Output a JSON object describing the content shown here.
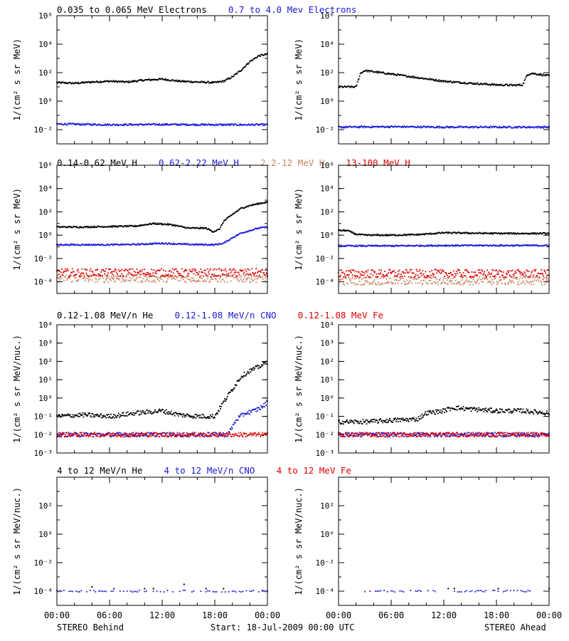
{
  "colors": {
    "black": "#000000",
    "blue": "#1a1ad8",
    "tan": "#c88864",
    "red": "#e00000"
  },
  "footer": {
    "left_label": "STEREO Behind",
    "center_label": "Start: 18-Jul-2009 00:00 UTC",
    "right_label": "STEREO Ahead"
  },
  "chart_data": [
    {
      "type": "scatter",
      "row_title": [
        {
          "text": "0.035 to 0.065 MeV Electrons",
          "color": "black"
        },
        {
          "text": "0.7 to 4.0 Mev Electrons",
          "color": "blue"
        }
      ],
      "ylabel": "1/(cm² s sr MeV)",
      "y_scale": "log",
      "ylim": [
        0.001,
        1000000
      ],
      "yticks": [
        {
          "v": 0.01,
          "label": "10⁻²"
        },
        {
          "v": 1,
          "label": "10⁰"
        },
        {
          "v": 100,
          "label": "10²"
        },
        {
          "v": 10000,
          "label": "10⁴"
        },
        {
          "v": 1000000,
          "label": "10⁶"
        }
      ],
      "xlim": [
        0,
        24
      ],
      "x_ticks_hours": [
        0,
        6,
        12,
        18,
        24
      ],
      "x_tick_labels": [],
      "panels": [
        {
          "name": "STEREO Behind",
          "series": [
            {
              "name": "0.035 to 0.065 MeV Electrons",
              "color": "black",
              "x": [
                0,
                2,
                4,
                6,
                8,
                10,
                12,
                14,
                16,
                18,
                19,
                20,
                21,
                22,
                23,
                24
              ],
              "y": [
                20,
                18,
                22,
                25,
                22,
                30,
                35,
                25,
                22,
                20,
                25,
                50,
                150,
                600,
                1500,
                2000
              ]
            },
            {
              "name": "0.7 to 4.0 Mev Electrons",
              "color": "blue",
              "x": [
                0,
                6,
                12,
                18,
                24
              ],
              "y": [
                0.025,
                0.022,
                0.023,
                0.022,
                0.022
              ]
            }
          ]
        },
        {
          "name": "STEREO Ahead",
          "series": [
            {
              "name": "0.035 to 0.065 MeV Electrons",
              "color": "black",
              "x": [
                0,
                2,
                2.5,
                3,
                6,
                9,
                12,
                15,
                18,
                20,
                21,
                21.5,
                22,
                24
              ],
              "y": [
                10,
                10,
                90,
                140,
                80,
                45,
                25,
                18,
                14,
                13,
                14,
                70,
                90,
                60
              ]
            },
            {
              "name": "0.7 to 4.0 Mev Electrons",
              "color": "blue",
              "x": [
                0,
                6,
                12,
                18,
                24
              ],
              "y": [
                0.015,
                0.016,
                0.015,
                0.015,
                0.015
              ]
            }
          ]
        }
      ]
    },
    {
      "type": "scatter",
      "row_title": [
        {
          "text": "0.14-0.62 MeV H",
          "color": "black"
        },
        {
          "text": "0.62-2.22 MeV H",
          "color": "blue"
        },
        {
          "text": "2.2-12 MeV H",
          "color": "tan"
        },
        {
          "text": "13-100 MeV H",
          "color": "red"
        }
      ],
      "ylabel": "1/(cm² s sr MeV)",
      "y_scale": "log",
      "ylim": [
        1e-05,
        1000000
      ],
      "yticks": [
        {
          "v": 0.0001,
          "label": "10⁻⁴"
        },
        {
          "v": 0.01,
          "label": "10⁻²"
        },
        {
          "v": 1,
          "label": "10⁰"
        },
        {
          "v": 100,
          "label": "10²"
        },
        {
          "v": 10000,
          "label": "10⁴"
        },
        {
          "v": 1000000,
          "label": "10⁶"
        }
      ],
      "xlim": [
        0,
        24
      ],
      "x_ticks_hours": [
        0,
        6,
        12,
        18,
        24
      ],
      "x_tick_labels": [],
      "panels": [
        {
          "name": "STEREO Behind",
          "series": [
            {
              "name": "0.14-0.62 MeV H",
              "color": "black",
              "x": [
                0,
                3,
                6,
                9,
                11,
                13,
                15,
                17,
                17.8,
                18.5,
                19,
                20,
                21,
                22,
                23,
                24
              ],
              "y": [
                5,
                5,
                5.5,
                6,
                10,
                8,
                4,
                4,
                2,
                3,
                15,
                60,
                200,
                350,
                500,
                700
              ]
            },
            {
              "name": "0.62-2.22 MeV H",
              "color": "blue",
              "x": [
                0,
                3,
                6,
                9,
                12,
                15,
                18,
                19,
                20,
                21,
                22,
                23,
                24
              ],
              "y": [
                0.15,
                0.15,
                0.15,
                0.16,
                0.2,
                0.16,
                0.15,
                0.2,
                0.6,
                1.5,
                2.5,
                4,
                5
              ]
            },
            {
              "name": "2.2-12 MeV H",
              "color": "tan",
              "x": [
                0,
                6,
                12,
                18,
                24
              ],
              "y": [
                0.0002,
                0.0002,
                0.0002,
                0.0002,
                0.0002
              ]
            },
            {
              "name": "13-100 MeV H",
              "color": "red",
              "x": [
                0,
                6,
                12,
                18,
                24
              ],
              "y": [
                0.0006,
                0.0006,
                0.0006,
                0.0006,
                0.0006
              ]
            }
          ]
        },
        {
          "name": "STEREO Ahead",
          "series": [
            {
              "name": "0.14-0.62 MeV H",
              "color": "black",
              "x": [
                0,
                1,
                2,
                3,
                6,
                9,
                12,
                15,
                18,
                21,
                24
              ],
              "y": [
                2.5,
                2.5,
                1.2,
                1,
                1,
                1.1,
                1.6,
                1.5,
                1.4,
                1.4,
                1.4
              ]
            },
            {
              "name": "0.62-2.22 MeV H",
              "color": "blue",
              "x": [
                0,
                6,
                12,
                18,
                24
              ],
              "y": [
                0.12,
                0.12,
                0.13,
                0.13,
                0.13
              ]
            },
            {
              "name": "2.2-12 MeV H",
              "color": "tan",
              "x": [
                0,
                6,
                12,
                18,
                24
              ],
              "y": [
                0.00012,
                0.00012,
                0.00012,
                0.00012,
                0.00012
              ]
            },
            {
              "name": "13-100 MeV H",
              "color": "red",
              "x": [
                0,
                6,
                12,
                18,
                24
              ],
              "y": [
                0.0005,
                0.0005,
                0.0005,
                0.0005,
                0.0005
              ]
            }
          ]
        }
      ]
    },
    {
      "type": "scatter",
      "row_title": [
        {
          "text": "0.12-1.08 MeV/n He",
          "color": "black"
        },
        {
          "text": "0.12-1.08 MeV/n CNO",
          "color": "blue"
        },
        {
          "text": "0.12-1.08 MeV Fe",
          "color": "red"
        }
      ],
      "ylabel": "1/(cm² s sr MeV/nuc.)",
      "y_scale": "log",
      "ylim": [
        0.001,
        10000
      ],
      "yticks": [
        {
          "v": 0.001,
          "label": "10⁻³"
        },
        {
          "v": 0.01,
          "label": "10⁻²"
        },
        {
          "v": 0.1,
          "label": "10⁻¹"
        },
        {
          "v": 1,
          "label": "10⁰"
        },
        {
          "v": 10,
          "label": "10¹"
        },
        {
          "v": 100,
          "label": "10²"
        },
        {
          "v": 1000,
          "label": "10³"
        },
        {
          "v": 10000,
          "label": "10⁴"
        }
      ],
      "xlim": [
        0,
        24
      ],
      "x_ticks_hours": [
        0,
        6,
        12,
        18,
        24
      ],
      "x_tick_labels": [],
      "panels": [
        {
          "name": "STEREO Behind",
          "series": [
            {
              "name": "0.12-1.08 MeV/n He",
              "color": "black",
              "x": [
                0,
                3,
                6,
                9,
                12,
                14,
                16,
                18,
                19,
                20,
                21,
                22,
                23,
                24
              ],
              "y": [
                0.1,
                0.12,
                0.1,
                0.15,
                0.2,
                0.12,
                0.1,
                0.1,
                0.6,
                3,
                15,
                30,
                50,
                90
              ]
            },
            {
              "name": "0.12-1.08 MeV/n CNO",
              "color": "blue",
              "x": [
                0,
                6,
                12,
                18,
                19.5,
                20.5,
                21.5,
                22.5,
                23.5,
                24
              ],
              "y": [
                0.01,
                0.01,
                0.01,
                0.01,
                0.01,
                0.07,
                0.15,
                0.2,
                0.35,
                0.6
              ]
            },
            {
              "name": "0.12-1.08 MeV Fe",
              "color": "red",
              "x": [
                0,
                6,
                12,
                18,
                24
              ],
              "y": [
                0.01,
                0.01,
                0.01,
                0.01,
                0.01
              ]
            }
          ]
        },
        {
          "name": "STEREO Ahead",
          "series": [
            {
              "name": "0.12-1.08 MeV/n He",
              "color": "black",
              "x": [
                0,
                3,
                6,
                9,
                10,
                12,
                13,
                15,
                18,
                21,
                24
              ],
              "y": [
                0.05,
                0.05,
                0.06,
                0.07,
                0.15,
                0.2,
                0.3,
                0.25,
                0.2,
                0.2,
                0.15
              ]
            },
            {
              "name": "0.12-1.08 MeV/n CNO",
              "color": "blue",
              "x": [
                0,
                6,
                12,
                18,
                24
              ],
              "y": [
                0.01,
                0.01,
                0.01,
                0.01,
                0.01
              ]
            },
            {
              "name": "0.12-1.08 MeV Fe",
              "color": "red",
              "x": [
                0,
                6,
                12,
                18,
                24
              ],
              "y": [
                0.01,
                0.01,
                0.01,
                0.01,
                0.01
              ]
            }
          ]
        }
      ]
    },
    {
      "type": "scatter",
      "row_title": [
        {
          "text": "4 to 12 MeV/n He",
          "color": "black"
        },
        {
          "text": "4 to 12 MeV/n CNO",
          "color": "blue"
        },
        {
          "text": "4 to 12 MeV Fe",
          "color": "red"
        }
      ],
      "ylabel": "1/(cm² s sr MeV/nuc.)",
      "y_scale": "log",
      "ylim": [
        1e-05,
        10000
      ],
      "yticks": [
        {
          "v": 0.0001,
          "label": "10⁻⁴"
        },
        {
          "v": 0.01,
          "label": "10⁻²"
        },
        {
          "v": 1,
          "label": "10⁰"
        },
        {
          "v": 100,
          "label": "10²"
        }
      ],
      "xlim": [
        0,
        24
      ],
      "x_ticks_hours": [
        0,
        6,
        12,
        18,
        24
      ],
      "x_tick_labels": [
        "00:00",
        "06:00",
        "12:00",
        "18:00",
        "00:00"
      ],
      "panels": [
        {
          "name": "STEREO Behind",
          "series": [
            {
              "name": "4 to 12 MeV/n He",
              "color": "black",
              "x": [
                4,
                6.5,
                10,
                11,
                14.5,
                17,
                19
              ],
              "y": [
                0.0002,
                0.00015,
                0.00015,
                0.00015,
                0.0003,
                0.00015,
                0.00015
              ]
            },
            {
              "name": "4 to 12 MeV/n CNO",
              "color": "blue",
              "x": [
                0,
                6,
                12,
                18,
                24
              ],
              "y": [
                0.0001,
                0.0001,
                0.0001,
                0.0001,
                0.0001
              ]
            }
          ]
        },
        {
          "name": "STEREO Ahead",
          "series": [
            {
              "name": "4 to 12 MeV/n He",
              "color": "black",
              "x": [
                12.5,
                13.2,
                18.2,
                24
              ],
              "y": [
                0.00015,
                0.00015,
                0.00015,
                0.00015
              ]
            },
            {
              "name": "4 to 12 MeV/n CNO",
              "color": "blue",
              "x": [
                3,
                7,
                12,
                18,
                22
              ],
              "y": [
                0.0001,
                0.0001,
                0.0001,
                0.0001,
                0.0001
              ]
            }
          ]
        }
      ]
    }
  ]
}
